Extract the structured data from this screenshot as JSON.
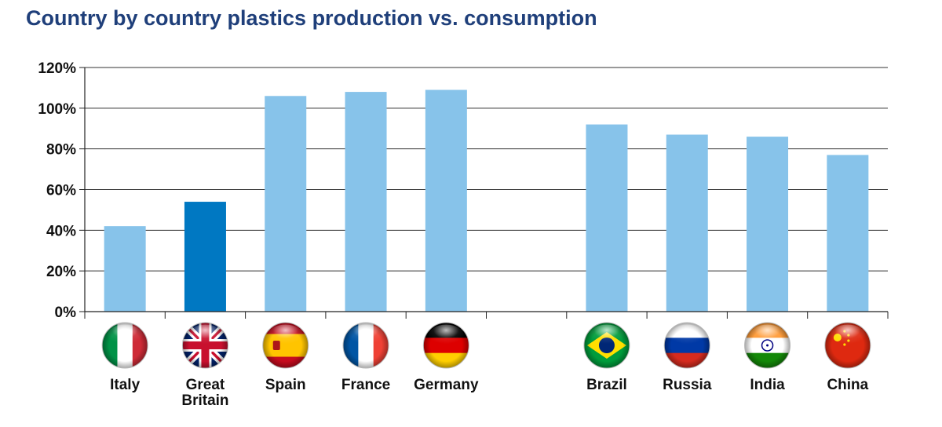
{
  "title": "Country by country plastics production vs. consumption",
  "colors": {
    "title": "#1f3f7a",
    "bar": "#87c3ea",
    "highlight_bar": "#0078c2",
    "axis": "#222222",
    "grid": "#333333"
  },
  "chart_data": {
    "type": "bar",
    "title": "Country by country plastics production vs. consumption",
    "xlabel": "",
    "ylabel": "",
    "ylim": [
      0,
      120
    ],
    "y_ticks": [
      "0%",
      "20%",
      "40%",
      "60%",
      "80%",
      "100%",
      "120%"
    ],
    "y_tick_values": [
      0,
      20,
      40,
      60,
      80,
      100,
      120
    ],
    "grid": true,
    "categories": [
      [
        "Italy"
      ],
      [
        "Great",
        "Britain"
      ],
      [
        "Spain"
      ],
      [
        "France"
      ],
      [
        "Germany"
      ],
      [],
      [
        "Brazil"
      ],
      [
        "Russia"
      ],
      [
        "India"
      ],
      [
        "China"
      ]
    ],
    "values": [
      42,
      54,
      106,
      108,
      109,
      null,
      92,
      87,
      86,
      77
    ],
    "highlight": [
      false,
      true,
      false,
      false,
      false,
      false,
      false,
      false,
      false,
      false
    ],
    "flags": [
      "italy-flag-icon",
      "great-britain-flag-icon",
      "spain-flag-icon",
      "france-flag-icon",
      "germany-flag-icon",
      null,
      "brazil-flag-icon",
      "russia-flag-icon",
      "india-flag-icon",
      "china-flag-icon"
    ]
  }
}
